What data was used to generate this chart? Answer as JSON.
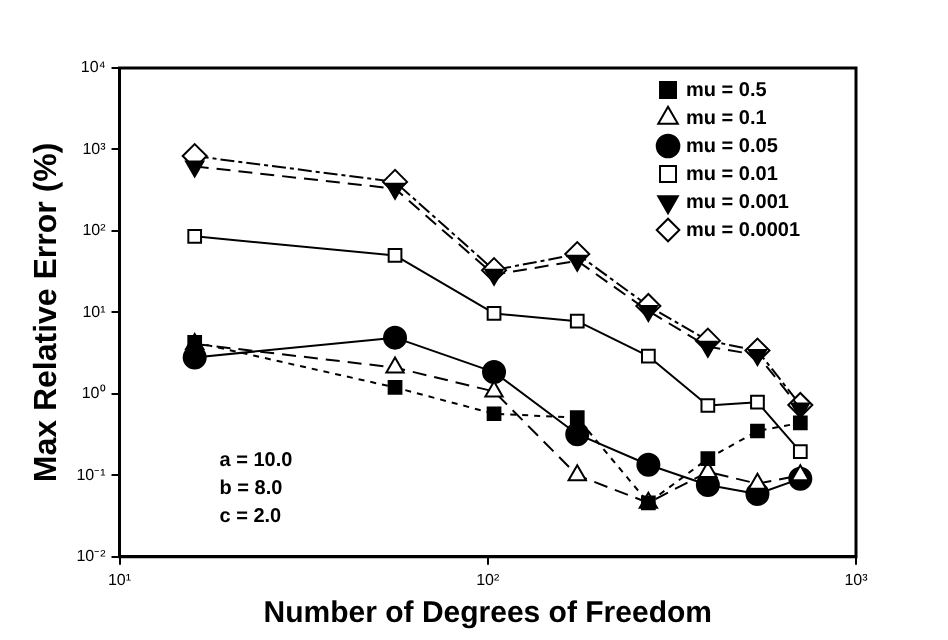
{
  "chart_data": {
    "type": "line",
    "xlabel": "Number of Degrees of Freedom",
    "ylabel": "Max Relative Error (%)",
    "log": "xy",
    "x": [
      16,
      56,
      104,
      175,
      273,
      396,
      540,
      706
    ],
    "xlim": [
      10,
      1000
    ],
    "xticks": [
      {
        "value": 10,
        "label": "10¹"
      },
      {
        "value": 100,
        "label": "10²"
      },
      {
        "value": 1000,
        "label": "10³"
      }
    ],
    "ylim": [
      0.01,
      10000
    ],
    "yticks": [
      {
        "value": 0.01,
        "label": "10⁻²"
      },
      {
        "value": 0.1,
        "label": "10⁻¹"
      },
      {
        "value": 1,
        "label": "10⁰"
      },
      {
        "value": 10,
        "label": "10¹"
      },
      {
        "value": 100,
        "label": "10²"
      },
      {
        "value": 1000,
        "label": "10³"
      },
      {
        "value": 10000,
        "label": "10⁴"
      }
    ],
    "grid": false,
    "legend": "top right",
    "annotations": [
      "a = 10.0",
      "b = 8.0",
      "c = 2.0"
    ],
    "series": [
      {
        "name": "mu = 0.5",
        "color": "#000000",
        "marker": "square",
        "line_style": "dashed",
        "values": [
          4.3,
          1.2,
          0.57,
          0.51,
          0.046,
          0.16,
          0.35,
          0.44
        ]
      },
      {
        "name": "mu = 0.1",
        "color": "#000000",
        "marker": "triangle",
        "line_style": "dashed",
        "values": [
          4.1,
          2.1,
          1.07,
          0.1,
          0.046,
          0.11,
          0.079,
          0.1
        ]
      },
      {
        "name": "mu = 0.05",
        "color": "#000000",
        "marker": "circle",
        "line_style": "solid",
        "values": [
          2.8,
          4.9,
          1.85,
          0.32,
          0.135,
          0.076,
          0.059,
          0.091
        ]
      },
      {
        "name": "mu = 0.01",
        "color": "#000000",
        "marker": "square",
        "line_style": "solid",
        "values": [
          86,
          50,
          9.7,
          7.8,
          2.9,
          0.72,
          0.79,
          0.195
        ]
      },
      {
        "name": "mu = 0.001",
        "color": "#000000",
        "marker": "triangle",
        "line_style": "dashed",
        "values": [
          620,
          330,
          29,
          43,
          10.4,
          3.8,
          3.0,
          0.66
        ]
      },
      {
        "name": "mu = 0.0001",
        "color": "#000000",
        "marker": "diamond",
        "line_style": "dotted",
        "values": [
          830,
          400,
          33,
          52,
          12,
          4.5,
          3.4,
          0.73
        ]
      }
    ]
  }
}
